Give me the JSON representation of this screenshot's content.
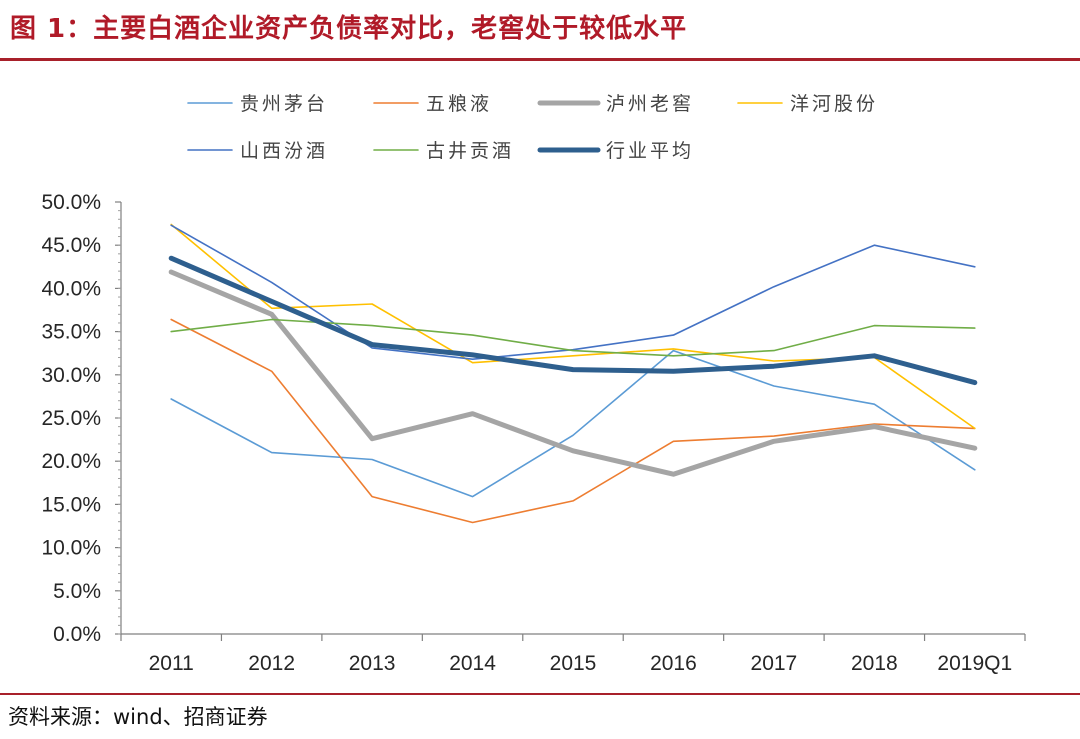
{
  "header": {
    "title": "图 1：主要白酒企业资产负债率对比，老窖处于较低水平"
  },
  "footer": {
    "source": "资料来源：wind、招商证券"
  },
  "chart_data": {
    "type": "line",
    "categories": [
      "2011",
      "2012",
      "2013",
      "2014",
      "2015",
      "2016",
      "2017",
      "2018",
      "2019Q1"
    ],
    "y_ticks": [
      "0.0%",
      "5.0%",
      "10.0%",
      "15.0%",
      "20.0%",
      "25.0%",
      "30.0%",
      "35.0%",
      "40.0%",
      "45.0%",
      "50.0%"
    ],
    "ylim": [
      0,
      50
    ],
    "y_unit": "%",
    "grid": false,
    "legend_position": "top",
    "series": [
      {
        "name": "贵州茅台",
        "color": "#5b9bd5",
        "values": [
          27.2,
          21.0,
          20.2,
          15.9,
          23.0,
          32.8,
          28.7,
          26.6,
          19.0
        ]
      },
      {
        "name": "五粮液",
        "color": "#ed7d31",
        "values": [
          36.4,
          30.4,
          15.9,
          12.9,
          15.4,
          22.3,
          22.9,
          24.3,
          23.8
        ]
      },
      {
        "name": "泸州老窖",
        "color": "#a5a5a5",
        "values": [
          41.9,
          37.0,
          22.6,
          25.5,
          21.2,
          18.5,
          22.3,
          24.0,
          21.5
        ]
      },
      {
        "name": "洋河股份",
        "color": "#ffc000",
        "values": [
          47.4,
          37.7,
          38.2,
          31.4,
          32.2,
          33.0,
          31.6,
          32.0,
          23.8
        ]
      },
      {
        "name": "山西汾酒",
        "color": "#4472c4",
        "values": [
          47.3,
          40.7,
          33.1,
          31.8,
          32.9,
          34.6,
          40.2,
          45.0,
          42.5
        ]
      },
      {
        "name": "古井贡酒",
        "color": "#70ad47",
        "values": [
          35.0,
          36.4,
          35.7,
          34.6,
          32.8,
          32.2,
          32.8,
          35.7,
          35.4
        ]
      },
      {
        "name": "行业平均",
        "color": "#2e5f8e",
        "values": [
          43.5,
          38.5,
          33.5,
          32.3,
          30.6,
          30.4,
          31.0,
          32.2,
          29.1
        ]
      }
    ]
  }
}
